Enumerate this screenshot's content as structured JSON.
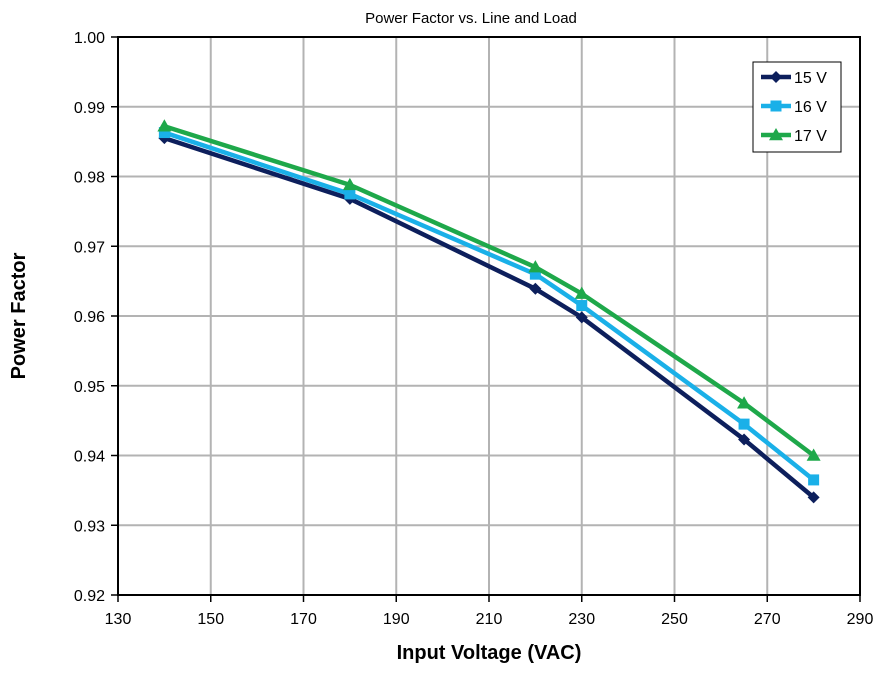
{
  "chart_data": {
    "type": "line",
    "title": "Power Factor vs. Line and Load",
    "xlabel": "Input Voltage (VAC)",
    "ylabel": "Power Factor",
    "xlim": [
      130,
      290
    ],
    "ylim": [
      0.92,
      1.0
    ],
    "xticks": [
      "130",
      "150",
      "170",
      "190",
      "210",
      "230",
      "250",
      "270",
      "290"
    ],
    "yticks": [
      "0.92",
      "0.93",
      "0.94",
      "0.95",
      "0.96",
      "0.97",
      "0.98",
      "0.99",
      "1.00"
    ],
    "grid": true,
    "legend_position": "top-right",
    "x": [
      140,
      180,
      220,
      230,
      265,
      280
    ],
    "series": [
      {
        "name": "15 V",
        "color": "#0d1f5c",
        "marker": "diamond",
        "values": [
          0.9855,
          0.9768,
          0.9639,
          0.9598,
          0.9423,
          0.934
        ]
      },
      {
        "name": "16 V",
        "color": "#1ab0e8",
        "marker": "square",
        "values": [
          0.9863,
          0.9775,
          0.966,
          0.9615,
          0.9445,
          0.9365
        ]
      },
      {
        "name": "17 V",
        "color": "#1ea84a",
        "marker": "triangle",
        "values": [
          0.9872,
          0.9788,
          0.967,
          0.9632,
          0.9475,
          0.94
        ]
      }
    ]
  }
}
